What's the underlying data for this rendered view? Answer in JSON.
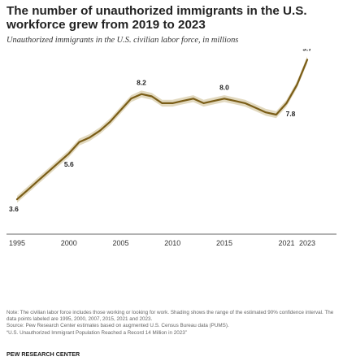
{
  "chart_data": {
    "type": "line",
    "title": "The number of unauthorized immigrants in the U.S. workforce grew from 2019 to 2023",
    "subtitle": "Unauthorized immigrants in the U.S. civilian labor force, in millions",
    "x_tick_labels": [
      "1995",
      "2000",
      "2005",
      "2010",
      "2015",
      "2021",
      "2023"
    ],
    "xlim": [
      1995,
      2023
    ],
    "ylim": [
      3,
      10
    ],
    "series": [
      {
        "color": "#7a5d17",
        "band_color": "#e2d9bf",
        "band_halfwidth": 0.15,
        "points": [
          {
            "x": 1995,
            "y": 3.6
          },
          {
            "x": 1996,
            "y": 4.0
          },
          {
            "x": 1997,
            "y": 4.4
          },
          {
            "x": 1998,
            "y": 4.8
          },
          {
            "x": 1999,
            "y": 5.2
          },
          {
            "x": 2000,
            "y": 5.6
          },
          {
            "x": 2001,
            "y": 6.1
          },
          {
            "x": 2002,
            "y": 6.3
          },
          {
            "x": 2003,
            "y": 6.6
          },
          {
            "x": 2004,
            "y": 7.0
          },
          {
            "x": 2005,
            "y": 7.5
          },
          {
            "x": 2006,
            "y": 8.0
          },
          {
            "x": 2007,
            "y": 8.2
          },
          {
            "x": 2008,
            "y": 8.1
          },
          {
            "x": 2009,
            "y": 7.8
          },
          {
            "x": 2010,
            "y": 7.8
          },
          {
            "x": 2011,
            "y": 7.9
          },
          {
            "x": 2012,
            "y": 8.0
          },
          {
            "x": 2013,
            "y": 7.8
          },
          {
            "x": 2014,
            "y": 7.9
          },
          {
            "x": 2015,
            "y": 8.0
          },
          {
            "x": 2016,
            "y": 7.9
          },
          {
            "x": 2017,
            "y": 7.8
          },
          {
            "x": 2018,
            "y": 7.6
          },
          {
            "x": 2019,
            "y": 7.4
          },
          {
            "x": 2020,
            "y": 7.3
          },
          {
            "x": 2021,
            "y": 7.8
          },
          {
            "x": 2022,
            "y": 8.6
          },
          {
            "x": 2023,
            "y": 9.7
          }
        ]
      }
    ],
    "data_labels": [
      {
        "x": 1995,
        "text": "3.6"
      },
      {
        "x": 2000,
        "text": "5.6"
      },
      {
        "x": 2007,
        "text": "8.2"
      },
      {
        "x": 2015,
        "text": "8.0"
      },
      {
        "x": 2021,
        "text": "7.8"
      },
      {
        "x": 2023,
        "text": "9.7"
      }
    ]
  },
  "notes": {
    "note": "Note: The civilian labor force includes those working or looking for work. Shading shows the range of the estimated 90% confidence interval. The data points labeled are 1995, 2000, 2007, 2015, 2021 and 2023.",
    "source": "Source: Pew Research Center estimates based on augmented U.S. Census Bureau data (PUMS).",
    "report": "“U.S. Unauthorized Immigrant Population Reached a Record 14 Million in 2023”"
  },
  "org": "PEW RESEARCH CENTER"
}
